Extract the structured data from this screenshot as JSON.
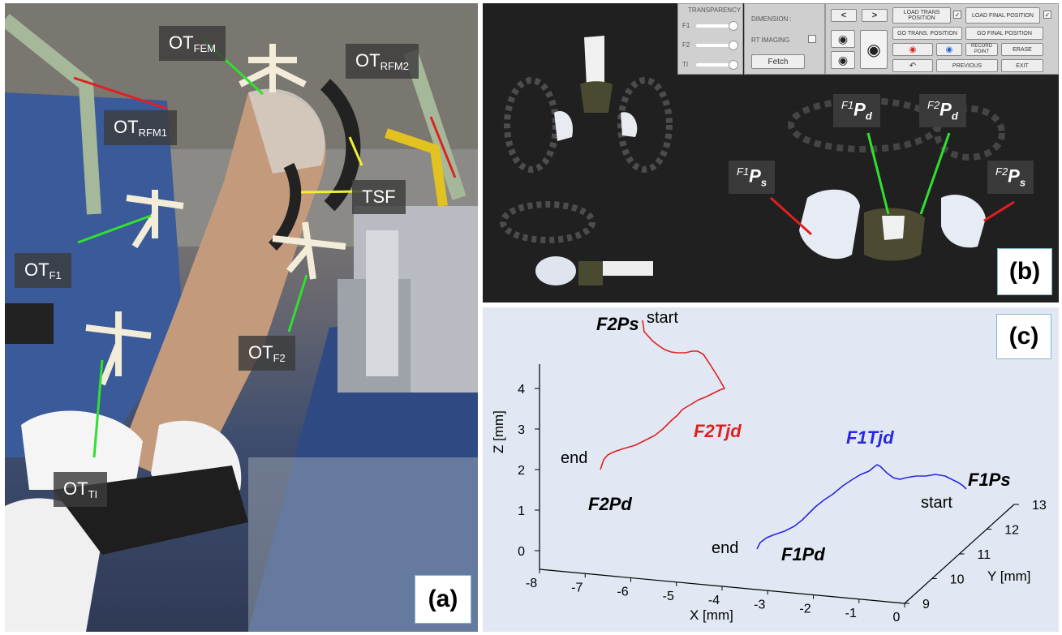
{
  "panel_a": {
    "letter": "(a)",
    "labels": [
      {
        "id": "ot-fem",
        "main": "OT",
        "sub": "FEM"
      },
      {
        "id": "ot-rfm2",
        "main": "OT",
        "sub": "RFM2"
      },
      {
        "id": "ot-rfm1",
        "main": "OT",
        "sub": "RFM1"
      },
      {
        "id": "tsf",
        "main": "TSF",
        "sub": ""
      },
      {
        "id": "ot-f1",
        "main": "OT",
        "sub": "F1"
      },
      {
        "id": "ot-f2",
        "main": "OT",
        "sub": "F2"
      },
      {
        "id": "ot-ti",
        "main": "OT",
        "sub": "TI"
      }
    ]
  },
  "panel_b": {
    "letter": "(b)",
    "ui": {
      "transparency": "TRANSPARENCY",
      "f1": "F1",
      "f2": "F2",
      "ti": "TI",
      "dimension": "DIMENSION :",
      "rt_imaging": "RT IMAGING",
      "fetch": "Fetch",
      "prev_arrow": "<",
      "next_arrow": ">",
      "load_trans_position": "LOAD TRANS POSITION",
      "load_final_position": "LOAD FINAL POSITION",
      "go_trans_position": "GO TRANS. POSITION",
      "go_final_position": "GO FINAL POSITION",
      "record_point": "RECORD POINT",
      "erase": "ERASE",
      "previous": "PREVIOUS",
      "exit": "EXIT"
    },
    "labels": {
      "f1pd": {
        "sup": "F1",
        "main": "P",
        "sub": "d"
      },
      "f2pd": {
        "sup": "F2",
        "main": "P",
        "sub": "d"
      },
      "f1ps": {
        "sup": "F1",
        "main": "P",
        "sub": "s"
      },
      "f2ps": {
        "sup": "F2",
        "main": "P",
        "sub": "s"
      }
    }
  },
  "panel_c": {
    "letter": "(c)",
    "zlabel": "Z [mm]",
    "xlabel": "X [mm]",
    "ylabel": "Y [mm]",
    "annotations": {
      "f2ps": "F2Ps",
      "f2pd": "F2Pd",
      "f2tjd": "F2Tjd",
      "f1tjd": "F1Tjd",
      "f1ps": "F1Ps",
      "f1pd": "F1Pd",
      "start_top": "start",
      "end_left": "end",
      "start_right": "start",
      "end_bottom": "end"
    }
  },
  "chart_data": {
    "type": "line",
    "title": "",
    "xlabel": "X [mm]",
    "ylabel": "Y [mm]",
    "zlabel": "Z [mm]",
    "xlim": [
      -8,
      0
    ],
    "ylim": [
      9,
      13
    ],
    "zlim": [
      0,
      4
    ],
    "x_ticks": [
      "-8",
      "-7",
      "-6",
      "-5",
      "-4",
      "-3",
      "-2",
      "-1",
      "0"
    ],
    "y_ticks": [
      "9",
      "10",
      "11",
      "12",
      "13"
    ],
    "z_ticks": [
      "0",
      "1",
      "2",
      "3",
      "4"
    ],
    "series": [
      {
        "name": "F2Tjd",
        "color": "#e02020"
      },
      {
        "name": "F1Tjd",
        "color": "#2020e0"
      }
    ]
  }
}
